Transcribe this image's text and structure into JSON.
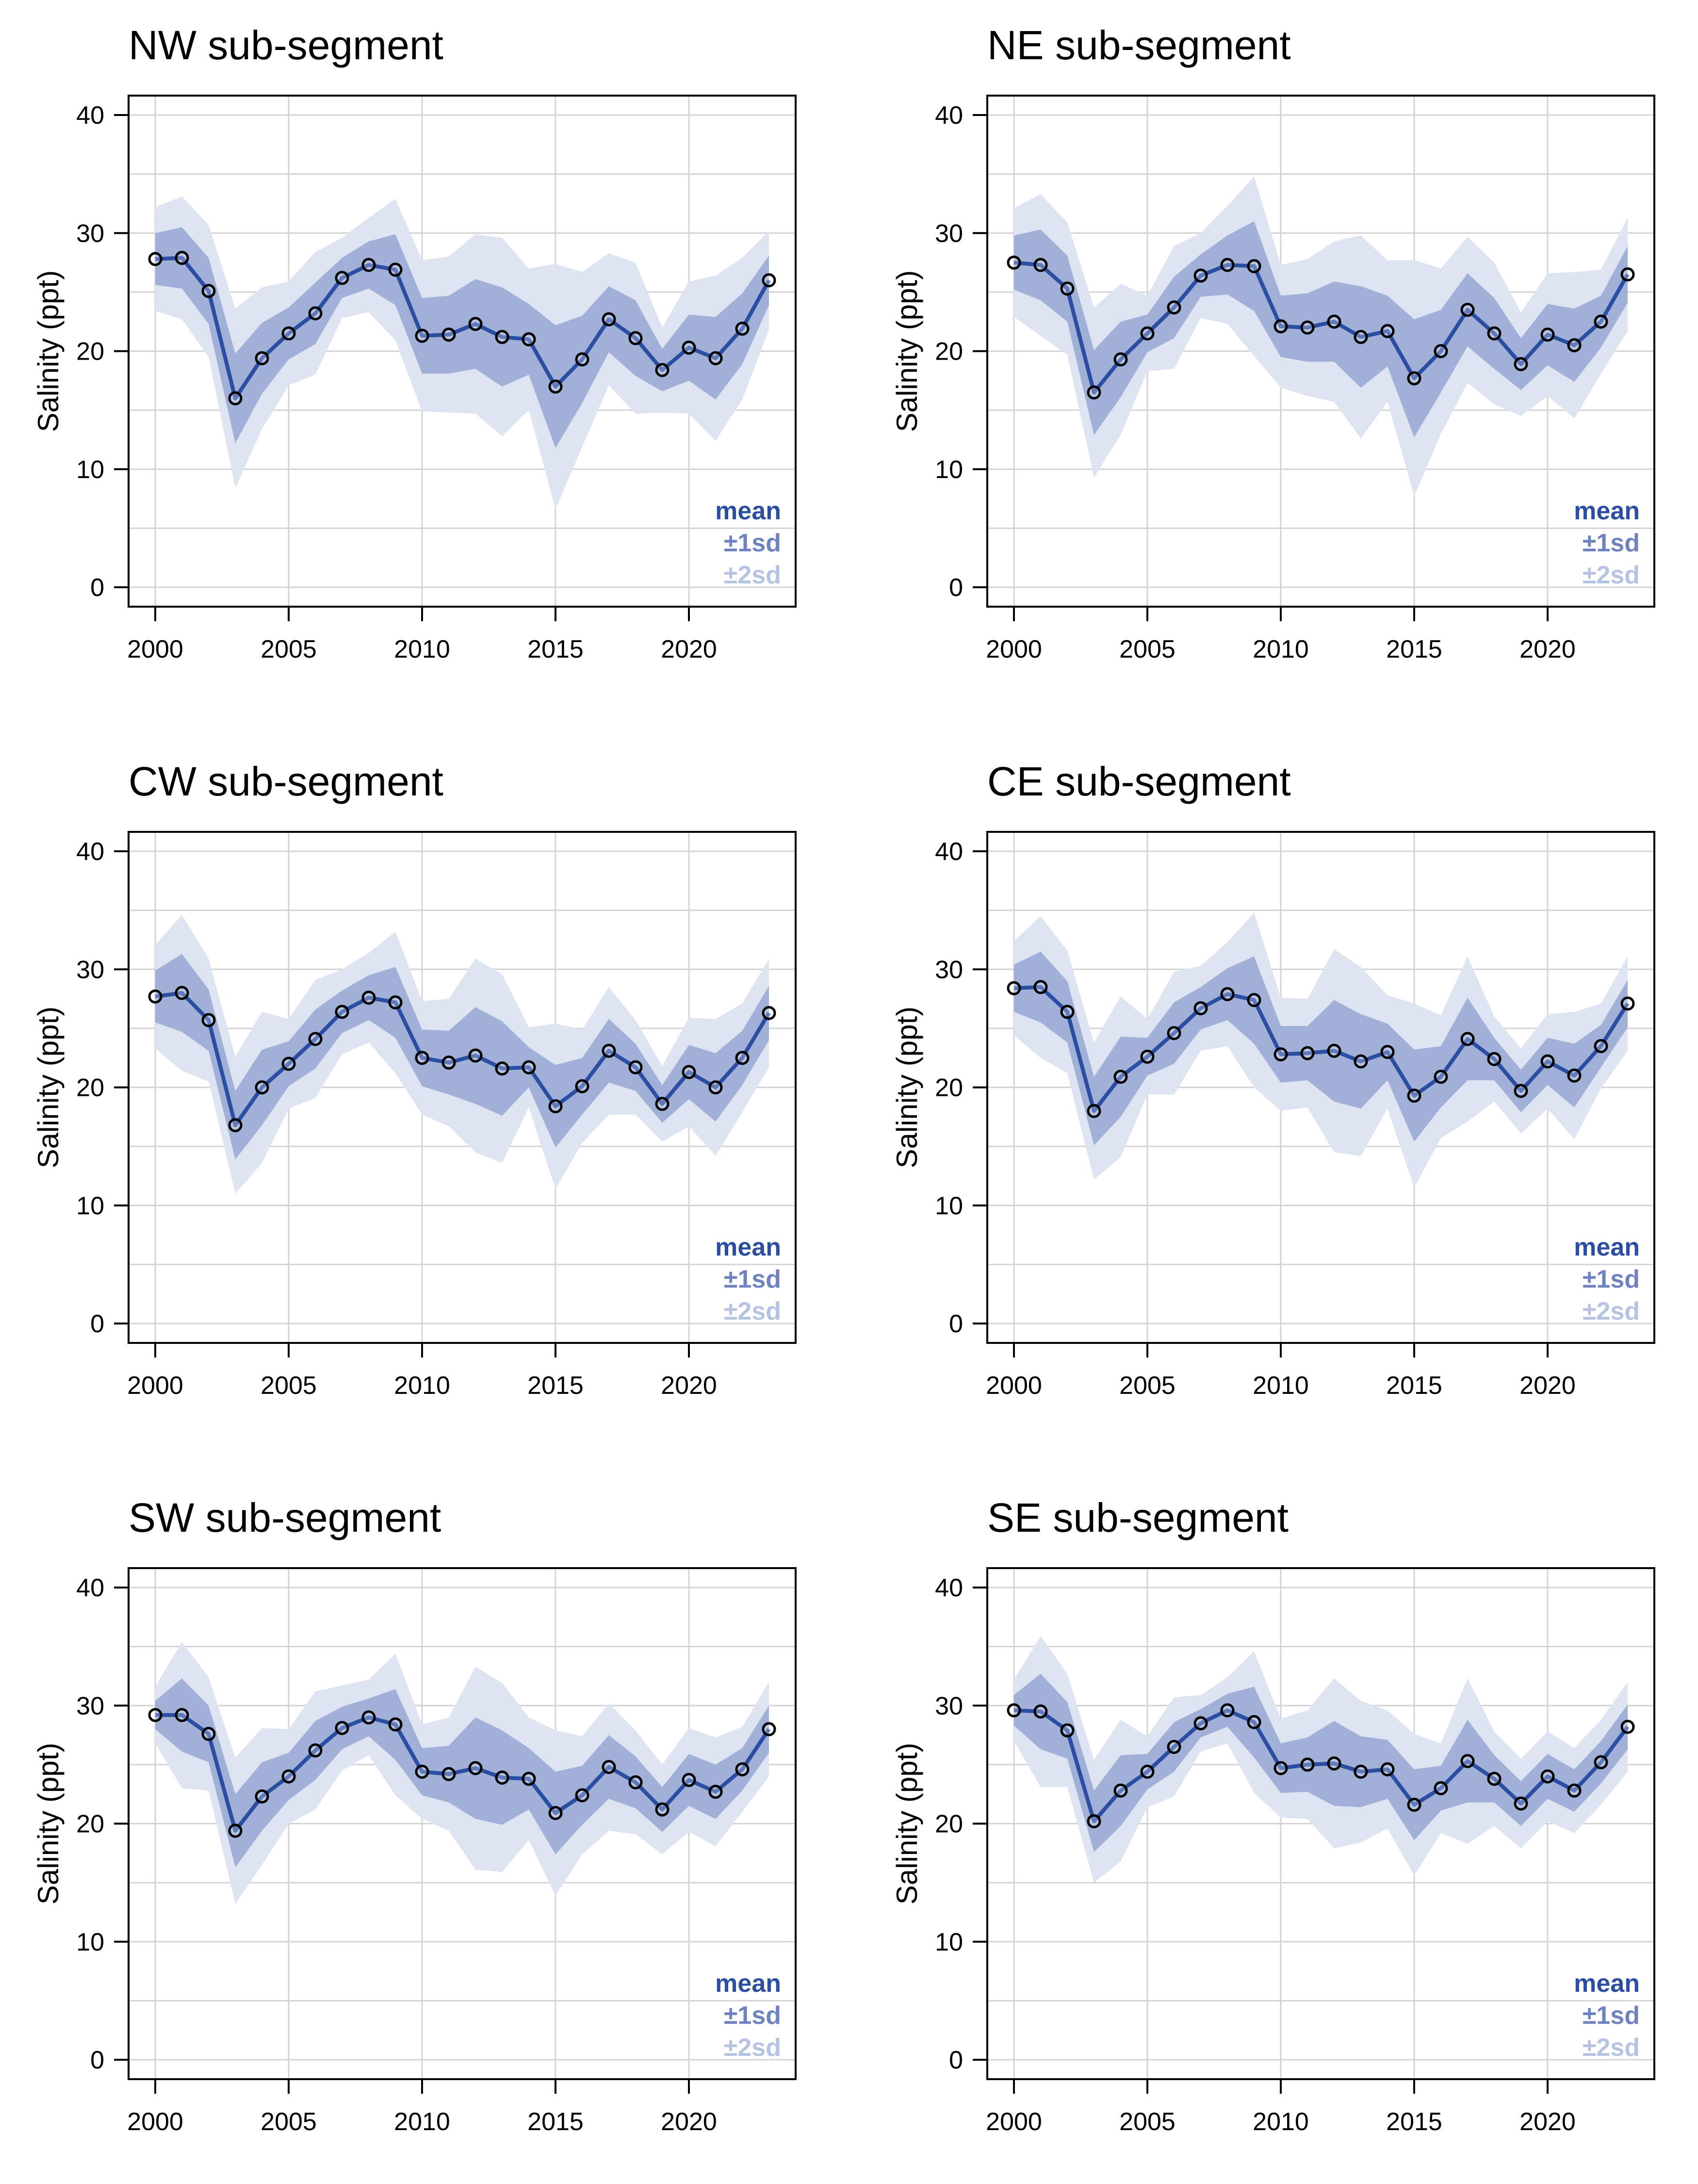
{
  "chart_data": [
    {
      "type": "line",
      "title": "NW sub-segment",
      "ylabel": "Salinity (ppt)",
      "xlabel": "",
      "xlim": [
        2000,
        2023
      ],
      "ylim": [
        0,
        40
      ],
      "xticks": [
        2000,
        2005,
        2010,
        2015,
        2020
      ],
      "yticks": [
        0,
        10,
        20,
        30,
        40
      ],
      "grid": true,
      "legend": [
        "mean",
        "±1sd",
        "±2sd"
      ],
      "legend_position": "bottom-right",
      "x": [
        2000,
        2001,
        2002,
        2003,
        2004,
        2005,
        2006,
        2007,
        2008,
        2009,
        2010,
        2011,
        2012,
        2013,
        2014,
        2015,
        2016,
        2017,
        2018,
        2019,
        2020,
        2021,
        2022,
        2023
      ],
      "mean": [
        27.8,
        27.9,
        25.1,
        16.0,
        19.4,
        21.5,
        23.2,
        26.2,
        27.3,
        26.9,
        21.3,
        21.4,
        22.3,
        21.2,
        21.0,
        17.0,
        19.3,
        22.7,
        21.1,
        18.4,
        20.3,
        19.4,
        21.9,
        26.0
      ],
      "sd": [
        2.2,
        2.6,
        2.8,
        3.8,
        3.0,
        2.2,
        2.6,
        1.7,
        2.0,
        3.0,
        3.2,
        3.3,
        3.8,
        4.2,
        3.0,
        5.2,
        3.7,
        2.8,
        3.2,
        1.8,
        2.8,
        3.5,
        3.0,
        2.1
      ]
    },
    {
      "type": "line",
      "title": "NE sub-segment",
      "ylabel": "Salinity (ppt)",
      "xlabel": "",
      "xlim": [
        2000,
        2023
      ],
      "ylim": [
        0,
        40
      ],
      "xticks": [
        2000,
        2005,
        2010,
        2015,
        2020
      ],
      "yticks": [
        0,
        10,
        20,
        30,
        40
      ],
      "grid": true,
      "legend": [
        "mean",
        "±1sd",
        "±2sd"
      ],
      "legend_position": "bottom-right",
      "x": [
        2000,
        2001,
        2002,
        2003,
        2004,
        2005,
        2006,
        2007,
        2008,
        2009,
        2010,
        2011,
        2012,
        2013,
        2014,
        2015,
        2016,
        2017,
        2018,
        2019,
        2020,
        2021,
        2022,
        2023
      ],
      "mean": [
        27.5,
        27.3,
        25.3,
        16.5,
        19.3,
        21.5,
        23.7,
        26.4,
        27.3,
        27.2,
        22.1,
        22.0,
        22.5,
        21.2,
        21.7,
        17.7,
        20.0,
        23.5,
        21.5,
        18.9,
        21.4,
        20.5,
        22.5,
        26.5
      ],
      "sd": [
        2.3,
        3.0,
        2.8,
        3.6,
        3.2,
        1.6,
        2.6,
        1.8,
        2.5,
        3.8,
        2.6,
        2.9,
        3.4,
        4.3,
        3.0,
        5.0,
        3.5,
        3.1,
        3.0,
        2.2,
        2.6,
        3.1,
        2.2,
        2.4
      ]
    },
    {
      "type": "line",
      "title": "CW sub-segment",
      "ylabel": "Salinity (ppt)",
      "xlabel": "",
      "xlim": [
        2000,
        2023
      ],
      "ylim": [
        0,
        40
      ],
      "xticks": [
        2000,
        2005,
        2010,
        2015,
        2020
      ],
      "yticks": [
        0,
        10,
        20,
        30,
        40
      ],
      "grid": true,
      "legend": [
        "mean",
        "±1sd",
        "±2sd"
      ],
      "legend_position": "bottom-right",
      "x": [
        2000,
        2001,
        2002,
        2003,
        2004,
        2005,
        2006,
        2007,
        2008,
        2009,
        2010,
        2011,
        2012,
        2013,
        2014,
        2015,
        2016,
        2017,
        2018,
        2019,
        2020,
        2021,
        2022,
        2023
      ],
      "mean": [
        27.7,
        28.0,
        25.7,
        16.8,
        20.0,
        22.0,
        24.1,
        26.4,
        27.6,
        27.2,
        22.5,
        22.1,
        22.7,
        21.6,
        21.7,
        18.4,
        20.1,
        23.1,
        21.7,
        18.6,
        21.3,
        20.0,
        22.5,
        26.3
      ],
      "sd": [
        2.2,
        3.3,
        2.6,
        2.9,
        3.2,
        1.9,
        2.5,
        1.8,
        1.9,
        3.0,
        2.4,
        2.7,
        4.1,
        4.0,
        1.7,
        3.5,
        2.4,
        2.7,
        2.0,
        1.6,
        2.3,
        2.9,
        2.3,
        2.3
      ]
    },
    {
      "type": "line",
      "title": "CE sub-segment",
      "ylabel": "Salinity (ppt)",
      "xlabel": "",
      "xlim": [
        2000,
        2023
      ],
      "ylim": [
        0,
        40
      ],
      "xticks": [
        2000,
        2005,
        2010,
        2015,
        2020
      ],
      "yticks": [
        0,
        10,
        20,
        30,
        40
      ],
      "grid": true,
      "legend": [
        "mean",
        "±1sd",
        "±2sd"
      ],
      "legend_position": "bottom-right",
      "x": [
        2000,
        2001,
        2002,
        2003,
        2004,
        2005,
        2006,
        2007,
        2008,
        2009,
        2010,
        2011,
        2012,
        2013,
        2014,
        2015,
        2016,
        2017,
        2018,
        2019,
        2020,
        2021,
        2022,
        2023
      ],
      "mean": [
        28.4,
        28.5,
        26.4,
        18.0,
        20.9,
        22.6,
        24.6,
        26.7,
        27.9,
        27.4,
        22.8,
        22.9,
        23.1,
        22.2,
        23.0,
        19.3,
        20.9,
        24.1,
        22.4,
        19.7,
        22.2,
        21.0,
        23.5,
        27.1
      ],
      "sd": [
        2.0,
        3.0,
        2.6,
        2.9,
        3.4,
        1.6,
        2.6,
        1.8,
        2.2,
        3.7,
        2.4,
        2.3,
        4.3,
        4.0,
        2.4,
        3.9,
        2.6,
        3.5,
        1.8,
        1.8,
        2.0,
        2.7,
        1.8,
        2.0
      ]
    },
    {
      "type": "line",
      "title": "SW sub-segment",
      "ylabel": "Salinity (ppt)",
      "xlabel": "",
      "xlim": [
        2000,
        2023
      ],
      "ylim": [
        0,
        40
      ],
      "xticks": [
        2000,
        2005,
        2010,
        2015,
        2020
      ],
      "yticks": [
        0,
        10,
        20,
        30,
        40
      ],
      "grid": true,
      "legend": [
        "mean",
        "±1sd",
        "±2sd"
      ],
      "legend_position": "bottom-right",
      "x": [
        2000,
        2001,
        2002,
        2003,
        2004,
        2005,
        2006,
        2007,
        2008,
        2009,
        2010,
        2011,
        2012,
        2013,
        2014,
        2015,
        2016,
        2017,
        2018,
        2019,
        2020,
        2021,
        2022,
        2023
      ],
      "mean": [
        29.2,
        29.2,
        27.6,
        19.4,
        22.3,
        24.0,
        26.2,
        28.1,
        29.0,
        28.4,
        24.4,
        24.2,
        24.7,
        23.9,
        23.8,
        20.9,
        22.4,
        24.8,
        23.5,
        21.2,
        23.7,
        22.7,
        24.6,
        28.0
      ],
      "sd": [
        1.2,
        3.1,
        2.4,
        3.1,
        2.9,
        2.0,
        2.5,
        1.8,
        1.6,
        3.0,
        2.0,
        2.4,
        4.3,
        4.0,
        2.6,
        3.5,
        2.5,
        2.7,
        2.2,
        1.9,
        2.2,
        2.3,
        1.8,
        2.0
      ]
    },
    {
      "type": "line",
      "title": "SE sub-segment",
      "ylabel": "Salinity (ppt)",
      "xlabel": "",
      "xlim": [
        2000,
        2023
      ],
      "ylim": [
        0,
        40
      ],
      "xticks": [
        2000,
        2005,
        2010,
        2015,
        2020
      ],
      "yticks": [
        0,
        10,
        20,
        30,
        40
      ],
      "grid": true,
      "legend": [
        "mean",
        "±1sd",
        "±2sd"
      ],
      "legend_position": "bottom-right",
      "x": [
        2000,
        2001,
        2002,
        2003,
        2004,
        2005,
        2006,
        2007,
        2008,
        2009,
        2010,
        2011,
        2012,
        2013,
        2014,
        2015,
        2016,
        2017,
        2018,
        2019,
        2020,
        2021,
        2022,
        2023
      ],
      "mean": [
        29.6,
        29.5,
        27.9,
        20.2,
        22.8,
        24.4,
        26.5,
        28.5,
        29.6,
        28.6,
        24.7,
        25.0,
        25.1,
        24.4,
        24.6,
        21.6,
        23.0,
        25.3,
        23.8,
        21.7,
        24.0,
        22.8,
        25.2,
        28.2
      ],
      "sd": [
        1.3,
        3.2,
        2.4,
        2.6,
        3.0,
        1.5,
        2.1,
        1.2,
        1.4,
        3.0,
        2.1,
        2.3,
        3.6,
        3.0,
        2.5,
        3.0,
        1.9,
        3.5,
        2.0,
        1.9,
        1.9,
        1.8,
        1.8,
        1.9
      ]
    }
  ],
  "colors": {
    "mean": "#2b4ea3",
    "sd1": "#97a7d2",
    "sd2": "#dfe4f2",
    "sd1_text": "#6e83bf",
    "sd2_text": "#b7c3e2",
    "grid": "#d4d4d4",
    "axis": "#000000"
  }
}
